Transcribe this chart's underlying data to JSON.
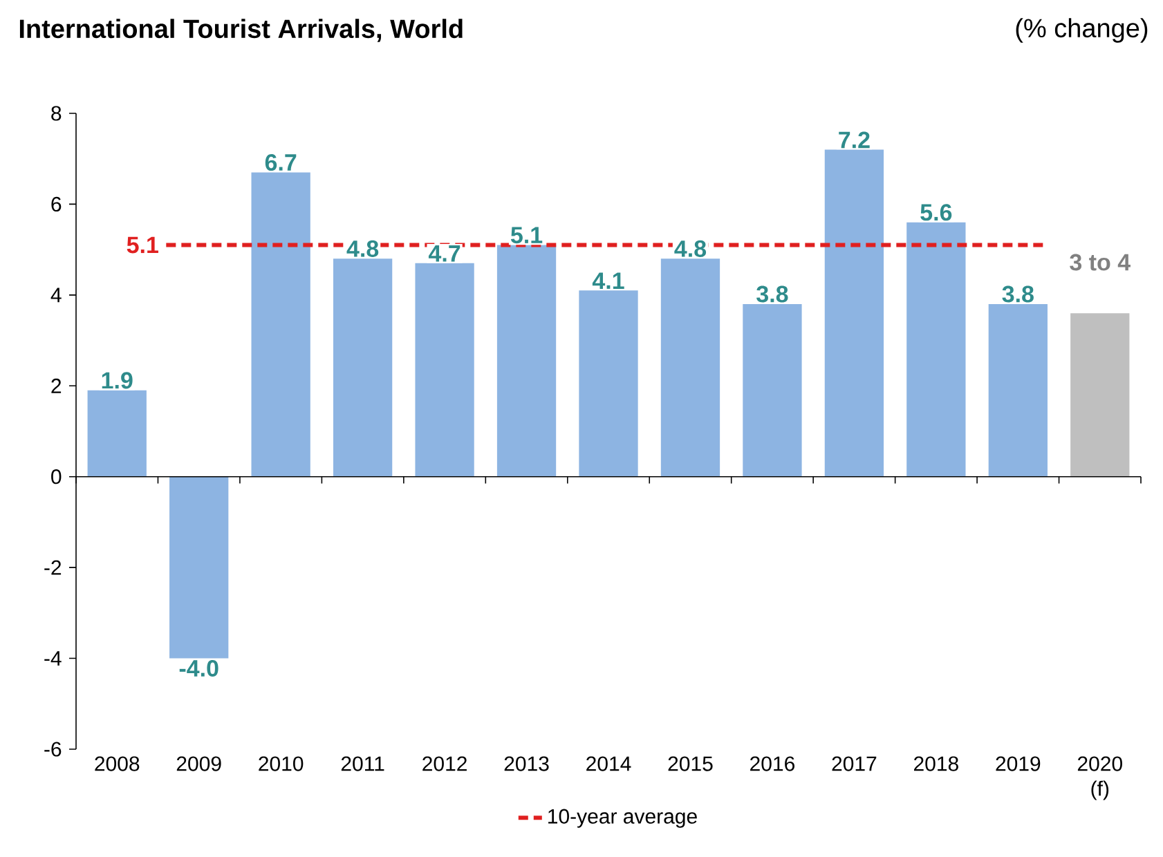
{
  "chart_data": {
    "type": "bar",
    "title": "International Tourist Arrivals, World",
    "ylabel": "(% change)",
    "categories": [
      "2008",
      "2009",
      "2010",
      "2011",
      "2012",
      "2013",
      "2014",
      "2015",
      "2016",
      "2017",
      "2018",
      "2019",
      "2020 (f)"
    ],
    "values": [
      1.9,
      -4.0,
      6.7,
      4.8,
      4.7,
      5.1,
      4.1,
      4.8,
      3.8,
      7.2,
      5.6,
      3.8,
      3.6
    ],
    "value_labels": [
      "1.9",
      "-4.0",
      "6.7",
      "4.8",
      "4.7",
      "5.1",
      "4.1",
      "4.8",
      "3.8",
      "7.2",
      "5.6",
      "3.8",
      "3 to 4"
    ],
    "colors": [
      "#8db4e2",
      "#8db4e2",
      "#8db4e2",
      "#8db4e2",
      "#8db4e2",
      "#8db4e2",
      "#8db4e2",
      "#8db4e2",
      "#8db4e2",
      "#8db4e2",
      "#8db4e2",
      "#8db4e2",
      "#bfbfbf"
    ],
    "ylim": [
      -6,
      8
    ],
    "yticks": [
      -6,
      -4,
      -2,
      0,
      2,
      4,
      6,
      8
    ],
    "ref_lines": [
      {
        "axis": "y",
        "value": 5.1,
        "label": "10-year average",
        "color": "#e02020",
        "line_style": "dashed"
      }
    ],
    "annotations": [
      {
        "text": "5.1",
        "x": "2009",
        "y": 5.1
      }
    ],
    "legend": "bottom"
  }
}
